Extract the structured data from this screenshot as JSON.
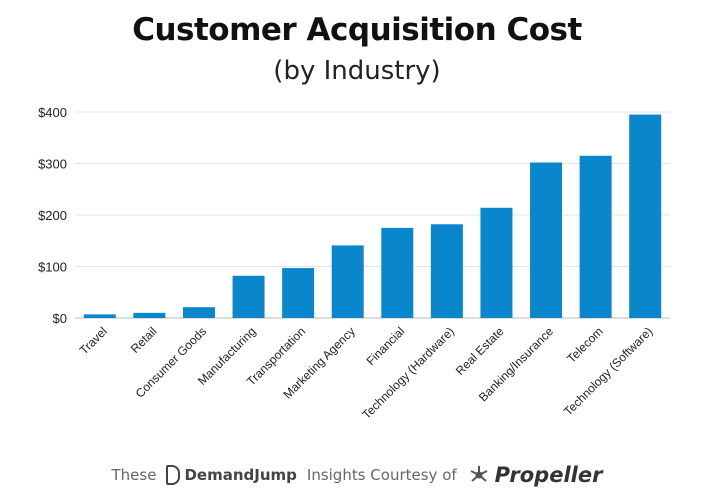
{
  "chart_data": {
    "type": "bar",
    "title": "Customer Acquisition Cost",
    "subtitle": "(by Industry)",
    "xlabel": "",
    "ylabel": "",
    "ylim": [
      0,
      400
    ],
    "yticks": [
      "$0",
      "$100",
      "$200",
      "$300",
      "$400"
    ],
    "ytick_values": [
      0,
      100,
      200,
      300,
      400
    ],
    "grid": true,
    "categories": [
      "Travel",
      "Retail",
      "Consumer Goods",
      "Manufacturing",
      "Transportation",
      "Marketing Agency",
      "Financial",
      "Technology (Hardware)",
      "Real Estate",
      "Banking/Insurance",
      "Telecom",
      "Technology (Software)"
    ],
    "values": [
      7,
      10,
      21,
      82,
      97,
      141,
      175,
      182,
      214,
      302,
      315,
      395
    ],
    "color": "#0a87cc"
  },
  "footer": {
    "prefix": "These",
    "brand1": "DemandJump",
    "middle": "Insights Courtesy of",
    "brand2": "Propeller"
  }
}
